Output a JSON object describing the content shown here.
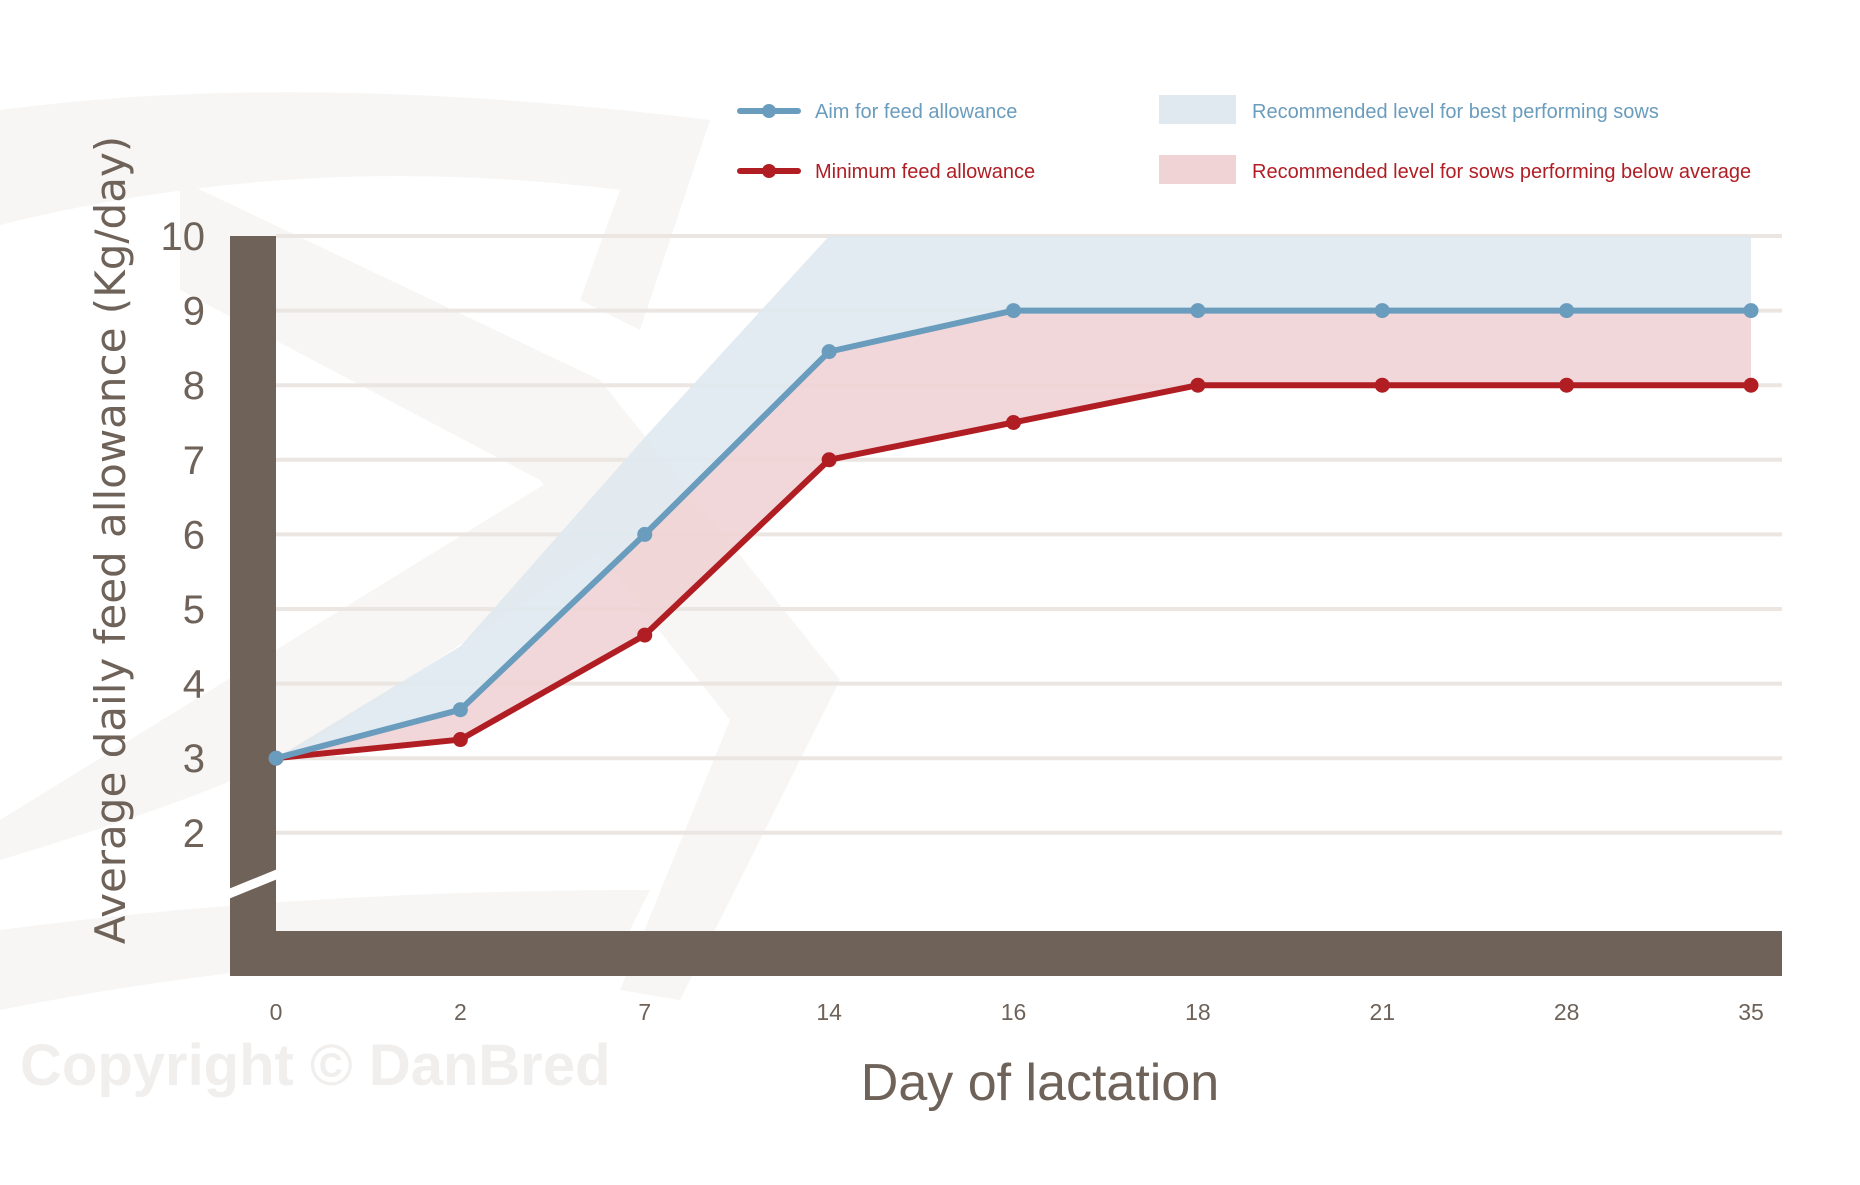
{
  "watermark": "Copyright © DanBred",
  "colors": {
    "aim": "#6a9cbd",
    "minimum": "#b01e24",
    "band_best": "#dfe9ef",
    "band_below": "#efd3d5",
    "axis": "#6e6259",
    "grid": "#ebe6e2"
  },
  "chart_data": {
    "type": "line",
    "xlabel": "Day of lactation",
    "ylabel": "Average daily feed allowance (Kg/day)",
    "categories": [
      "0",
      "2",
      "7",
      "14",
      "16",
      "18",
      "21",
      "28",
      "35"
    ],
    "y_ticks": [
      "2",
      "3",
      "4",
      "5",
      "6",
      "7",
      "8",
      "9",
      "10"
    ],
    "ylim": [
      1,
      10
    ],
    "y_axis_break": true,
    "grid": true,
    "legend_placement": "top",
    "series": [
      {
        "name": "Aim for feed allowance",
        "values": [
          3,
          3.65,
          6,
          8.45,
          9,
          9,
          9,
          9,
          9
        ]
      },
      {
        "name": "Minimum feed allowance",
        "values": [
          3,
          3.25,
          4.65,
          7,
          7.5,
          8,
          8,
          8,
          8
        ]
      }
    ],
    "bands": [
      {
        "name": "Recommended level for best performing sows",
        "upper": [
          3,
          4.5,
          7.3,
          10,
          10,
          10,
          10,
          10,
          10
        ],
        "lower_series": "Aim for feed allowance"
      },
      {
        "name": "Recommended level for sows performing below average",
        "upper_series": "Aim for feed allowance",
        "lower_series": "Minimum feed allowance"
      }
    ]
  }
}
